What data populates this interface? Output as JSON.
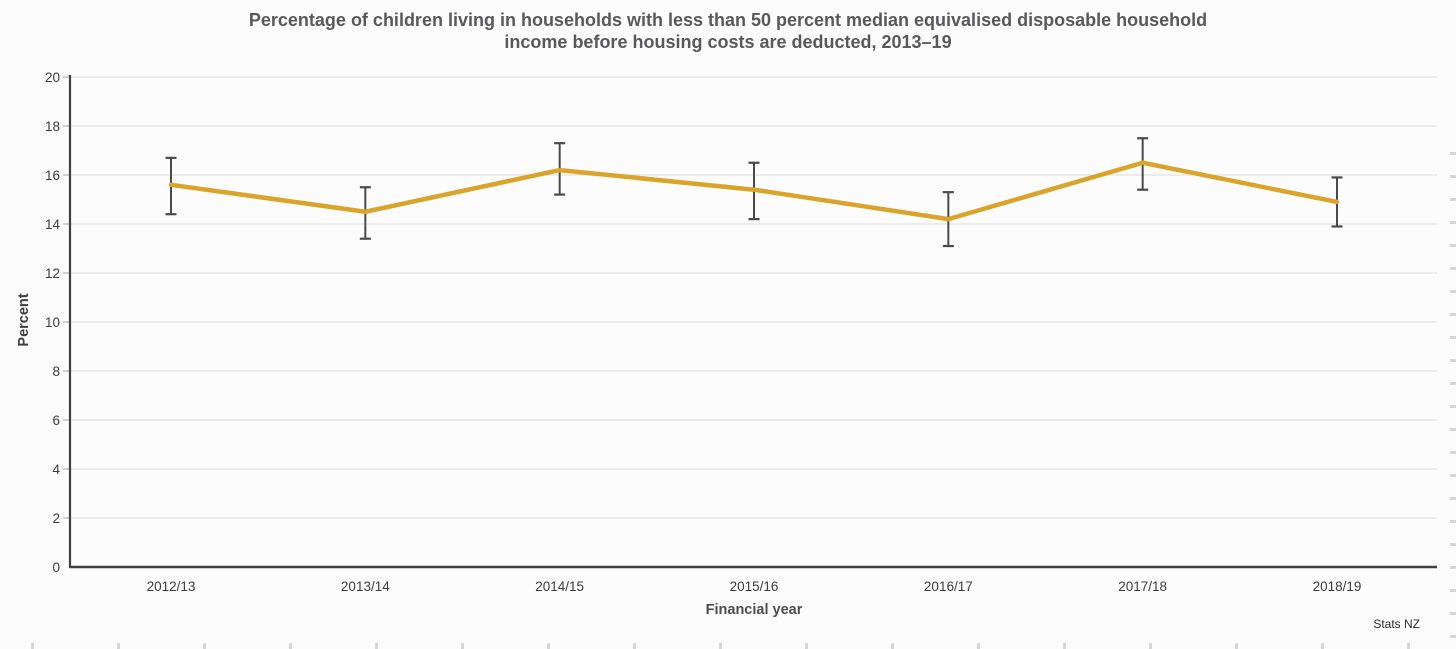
{
  "title": {
    "lines": [
      "Percentage of children living in households with less than 50 percent median equivalised disposable household",
      "income before housing costs are deducted, 2013–19"
    ]
  },
  "chart_data": {
    "type": "line",
    "title": "Percentage of children living in households with less than 50 percent median equivalised disposable household income before housing costs are deducted, 2013–19",
    "xlabel": "Financial year",
    "ylabel": "Percent",
    "categories": [
      "2012/13",
      "2013/14",
      "2014/15",
      "2015/16",
      "2016/17",
      "2017/18",
      "2018/19"
    ],
    "series": [
      {
        "values": [
          15.6,
          14.5,
          16.2,
          15.4,
          14.2,
          16.5,
          14.9
        ],
        "ci_low": [
          14.4,
          13.4,
          15.2,
          14.2,
          13.1,
          15.4,
          13.9
        ],
        "ci_high": [
          16.7,
          15.5,
          17.3,
          16.5,
          15.3,
          17.5,
          15.9
        ]
      }
    ],
    "ylim": [
      0,
      20
    ],
    "ytick_step": 2,
    "yticks": [
      0,
      2,
      4,
      6,
      8,
      10,
      12,
      14,
      16,
      18,
      20
    ],
    "grid": true,
    "error_bars": true,
    "legend_position": "none",
    "line_color": "#DAA32A",
    "error_bar_color": "#4a4a4a",
    "grid_color": "#e2e2e2",
    "axis_color": "#404040",
    "tick_label_color": "#3c3c3c"
  },
  "footer": {
    "source": "Stats NZ"
  }
}
